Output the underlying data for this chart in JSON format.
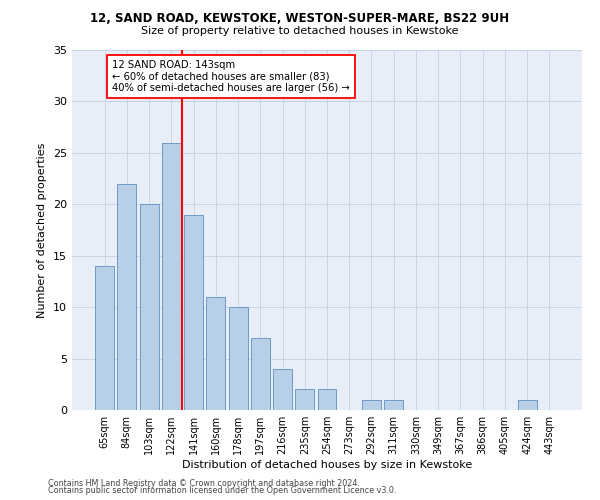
{
  "title1": "12, SAND ROAD, KEWSTOKE, WESTON-SUPER-MARE, BS22 9UH",
  "title2": "Size of property relative to detached houses in Kewstoke",
  "xlabel": "Distribution of detached houses by size in Kewstoke",
  "ylabel": "Number of detached properties",
  "bin_labels": [
    "65sqm",
    "84sqm",
    "103sqm",
    "122sqm",
    "141sqm",
    "160sqm",
    "178sqm",
    "197sqm",
    "216sqm",
    "235sqm",
    "254sqm",
    "273sqm",
    "292sqm",
    "311sqm",
    "330sqm",
    "349sqm",
    "367sqm",
    "386sqm",
    "405sqm",
    "424sqm",
    "443sqm"
  ],
  "bar_values": [
    14,
    22,
    20,
    26,
    19,
    11,
    10,
    7,
    4,
    2,
    2,
    0,
    1,
    1,
    0,
    0,
    0,
    0,
    0,
    1,
    0
  ],
  "bar_color": "#b8cfe8",
  "bar_edge_color": "#6090c0",
  "property_line_color": "red",
  "annotation_text": "12 SAND ROAD: 143sqm\n← 60% of detached houses are smaller (83)\n40% of semi-detached houses are larger (56) →",
  "annotation_box_color": "white",
  "annotation_box_edge_color": "red",
  "ylim": [
    0,
    35
  ],
  "yticks": [
    0,
    5,
    10,
    15,
    20,
    25,
    30,
    35
  ],
  "grid_color": "#c8d4e8",
  "background_color": "#e8eef8",
  "footer_line1": "Contains HM Land Registry data © Crown copyright and database right 2024.",
  "footer_line2": "Contains public sector information licensed under the Open Government Licence v3.0."
}
